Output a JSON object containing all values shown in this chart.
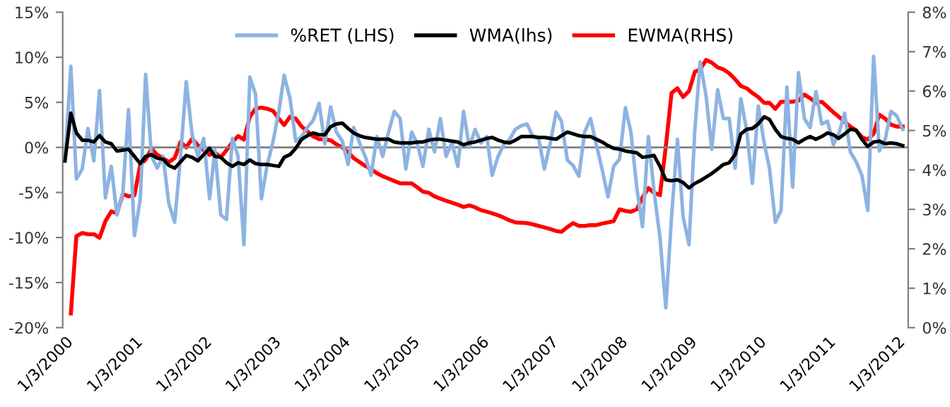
{
  "chart_data": {
    "type": "line",
    "x": [
      "2000-01",
      "2000-02",
      "2000-03",
      "2000-04",
      "2000-05",
      "2000-06",
      "2000-07",
      "2000-08",
      "2000-09",
      "2000-10",
      "2000-11",
      "2000-12",
      "2001-01",
      "2001-02",
      "2001-03",
      "2001-04",
      "2001-05",
      "2001-06",
      "2001-07",
      "2001-08",
      "2001-09",
      "2001-10",
      "2001-11",
      "2001-12",
      "2002-01",
      "2002-02",
      "2002-03",
      "2002-04",
      "2002-05",
      "2002-06",
      "2002-07",
      "2002-08",
      "2002-09",
      "2002-10",
      "2002-11",
      "2002-12",
      "2003-01",
      "2003-02",
      "2003-03",
      "2003-04",
      "2003-05",
      "2003-06",
      "2003-07",
      "2003-08",
      "2003-09",
      "2003-10",
      "2003-11",
      "2003-12",
      "2004-01",
      "2004-02",
      "2004-03",
      "2004-04",
      "2004-05",
      "2004-06",
      "2004-07",
      "2004-08",
      "2004-09",
      "2004-10",
      "2004-11",
      "2004-12",
      "2005-01",
      "2005-02",
      "2005-03",
      "2005-04",
      "2005-05",
      "2005-06",
      "2005-07",
      "2005-08",
      "2005-09",
      "2005-10",
      "2005-11",
      "2005-12",
      "2006-01",
      "2006-02",
      "2006-03",
      "2006-04",
      "2006-05",
      "2006-06",
      "2006-07",
      "2006-08",
      "2006-09",
      "2006-10",
      "2006-11",
      "2006-12",
      "2007-01",
      "2007-02",
      "2007-03",
      "2007-04",
      "2007-05",
      "2007-06",
      "2007-07",
      "2007-08",
      "2007-09",
      "2007-10",
      "2007-11",
      "2007-12",
      "2008-01",
      "2008-02",
      "2008-03",
      "2008-04",
      "2008-05",
      "2008-06",
      "2008-07",
      "2008-08",
      "2008-09",
      "2008-10",
      "2008-11",
      "2008-12",
      "2009-01",
      "2009-02",
      "2009-03",
      "2009-04",
      "2009-05",
      "2009-06",
      "2009-07",
      "2009-08",
      "2009-09",
      "2009-10",
      "2009-11",
      "2009-12",
      "2010-01",
      "2010-02",
      "2010-03",
      "2010-04",
      "2010-05",
      "2010-06",
      "2010-07",
      "2010-08",
      "2010-09",
      "2010-10",
      "2010-11",
      "2010-12",
      "2011-01",
      "2011-02",
      "2011-03",
      "2011-04",
      "2011-05",
      "2011-06",
      "2011-07",
      "2011-08",
      "2011-09",
      "2011-10",
      "2011-11",
      "2011-12",
      "2012-01",
      "2012-02"
    ],
    "xlim": [
      "1999-12-20",
      "2012-03-01"
    ],
    "xticks": [
      {
        "value": "2000-01-03",
        "label": "1/3/2000"
      },
      {
        "value": "2001-01-03",
        "label": "1/3/2001"
      },
      {
        "value": "2002-01-03",
        "label": "1/3/2002"
      },
      {
        "value": "2003-01-03",
        "label": "1/3/2003"
      },
      {
        "value": "2004-01-03",
        "label": "1/3/2004"
      },
      {
        "value": "2005-01-03",
        "label": "1/3/2005"
      },
      {
        "value": "2006-01-03",
        "label": "1/3/2006"
      },
      {
        "value": "2007-01-03",
        "label": "1/3/2007"
      },
      {
        "value": "2008-01-03",
        "label": "1/3/2008"
      },
      {
        "value": "2009-01-03",
        "label": "1/3/2009"
      },
      {
        "value": "2010-01-03",
        "label": "1/3/2010"
      },
      {
        "value": "2011-01-03",
        "label": "1/3/2011"
      },
      {
        "value": "2012-01-03",
        "label": "1/3/2012"
      }
    ],
    "ylim": [
      -20,
      15
    ],
    "yticks": [
      {
        "value": -20,
        "label": "-20%"
      },
      {
        "value": -15,
        "label": "-15%"
      },
      {
        "value": -10,
        "label": "-10%"
      },
      {
        "value": -5,
        "label": "-5%"
      },
      {
        "value": 0,
        "label": "0%"
      },
      {
        "value": 5,
        "label": "5%"
      },
      {
        "value": 10,
        "label": "10%"
      },
      {
        "value": 15,
        "label": "15%"
      }
    ],
    "y2lim": [
      0,
      8
    ],
    "y2ticks": [
      {
        "value": 0,
        "label": "0%"
      },
      {
        "value": 1,
        "label": "1%"
      },
      {
        "value": 2,
        "label": "2%"
      },
      {
        "value": 3,
        "label": "3%"
      },
      {
        "value": 4,
        "label": "4%"
      },
      {
        "value": 5,
        "label": "5%"
      },
      {
        "value": 6,
        "label": "6%"
      },
      {
        "value": 7,
        "label": "7%"
      },
      {
        "value": 8,
        "label": "8%"
      }
    ],
    "ref_lines": [
      {
        "axis": "y",
        "value": 0,
        "color": "#808080"
      }
    ],
    "grid": false,
    "legend": "top",
    "marker": "none",
    "line_style": "solid",
    "series": [
      {
        "name": "%RET (LHS)",
        "color": "#8db3e2",
        "values": [
          -1.5,
          9.0,
          -3.5,
          -2.4,
          2.1,
          -1.5,
          6.3,
          -5.6,
          -2.1,
          -7.5,
          -5.0,
          4.2,
          -9.8,
          -5.7,
          8.1,
          -1.0,
          -2.3,
          -1.0,
          -6.2,
          -8.3,
          -1.0,
          7.3,
          1.4,
          -1.0,
          1.0,
          -5.7,
          -0.3,
          -7.5,
          -8.0,
          1.0,
          -1.0,
          -10.8,
          7.8,
          5.9,
          -5.7,
          -2.0,
          0.6,
          4.0,
          8.0,
          5.4,
          0.7,
          1.2,
          2.2,
          3.0,
          4.9,
          0.4,
          4.5,
          1.7,
          0.7,
          -1.9,
          2.2,
          0.5,
          -1.0,
          -3.1,
          1.2,
          -1.0,
          1.7,
          4.0,
          3.2,
          -2.4,
          1.7,
          0.3,
          -2.1,
          2.0,
          -0.5,
          3.2,
          -1.0,
          0.5,
          -2.1,
          4.0,
          0.0,
          2.0,
          0.5,
          1.2,
          -3.1,
          -1.0,
          0.3,
          0.9,
          2.0,
          2.4,
          2.6,
          1.2,
          1.0,
          -2.4,
          0.5,
          3.9,
          2.9,
          -1.4,
          -2.0,
          -3.2,
          1.7,
          3.2,
          0.3,
          -2.4,
          -5.5,
          -2.1,
          -1.3,
          4.4,
          1.7,
          -4.5,
          -8.8,
          1.2,
          -4.9,
          -10.0,
          -17.8,
          -7.7,
          0.9,
          -7.7,
          -10.8,
          2.0,
          9.5,
          5.7,
          -0.2,
          6.4,
          3.2,
          3.2,
          -2.3,
          5.4,
          1.9,
          -4.0,
          4.6,
          0.5,
          -2.3,
          -8.3,
          -7.0,
          6.7,
          -4.4,
          8.3,
          3.2,
          2.2,
          6.2,
          2.6,
          2.9,
          0.3,
          1.5,
          3.8,
          -0.5,
          -1.6,
          -3.1,
          -7.0,
          10.1,
          -0.4,
          0.9,
          4.0,
          3.5,
          2.0
        ]
      },
      {
        "name": "WMA(lhs)",
        "color": "#000000",
        "values": [
          -1.5,
          3.8,
          1.6,
          0.8,
          0.8,
          0.6,
          1.3,
          0.6,
          0.4,
          -0.4,
          -0.3,
          -0.2,
          -1.0,
          -1.8,
          -1.0,
          -0.8,
          -1.2,
          -1.3,
          -2.0,
          -2.3,
          -1.6,
          -0.9,
          -1.1,
          -1.5,
          -0.8,
          -0.1,
          -1.0,
          -1.1,
          -1.7,
          -2.1,
          -1.7,
          -1.9,
          -1.4,
          -1.8,
          -1.9,
          -1.9,
          -2.0,
          -2.1,
          -1.1,
          -0.8,
          -0.1,
          0.9,
          1.3,
          1.6,
          1.4,
          1.4,
          2.3,
          2.6,
          2.7,
          2.1,
          1.6,
          1.3,
          1.1,
          1.0,
          0.9,
          0.9,
          0.9,
          0.6,
          0.5,
          0.5,
          0.5,
          0.6,
          0.6,
          0.8,
          0.9,
          0.9,
          0.8,
          0.7,
          0.6,
          0.3,
          0.5,
          0.6,
          0.8,
          1.0,
          1.1,
          0.8,
          0.6,
          0.5,
          0.8,
          1.2,
          1.2,
          1.2,
          1.1,
          1.1,
          1.0,
          0.9,
          1.3,
          1.7,
          1.5,
          1.3,
          1.2,
          1.2,
          0.9,
          0.6,
          0.2,
          -0.1,
          -0.2,
          -0.4,
          -0.5,
          -0.6,
          -1.1,
          -1.0,
          -0.9,
          -2.1,
          -3.6,
          -3.7,
          -3.6,
          -3.9,
          -4.5,
          -4.0,
          -3.7,
          -3.3,
          -2.9,
          -2.4,
          -1.9,
          -1.7,
          -0.8,
          1.5,
          2.0,
          2.1,
          2.6,
          3.4,
          3.1,
          2.0,
          1.2,
          1.0,
          0.9,
          0.5,
          0.9,
          1.2,
          0.9,
          1.2,
          1.6,
          1.4,
          1.0,
          1.5,
          2.0,
          1.9,
          0.9,
          0.1,
          0.6,
          0.7,
          0.4,
          0.5,
          0.4,
          0.2
        ]
      },
      {
        "name": "EWMA(RHS)",
        "color": "#ff0000",
        "axis": "y2",
        "values": [
          null,
          0.36,
          2.32,
          2.4,
          2.37,
          2.37,
          2.28,
          2.7,
          2.95,
          2.9,
          3.39,
          3.33,
          3.36,
          4.14,
          4.26,
          4.54,
          4.38,
          4.3,
          4.2,
          4.3,
          4.71,
          4.57,
          4.79,
          4.63,
          4.5,
          4.38,
          4.44,
          4.32,
          4.5,
          4.7,
          4.86,
          4.77,
          5.35,
          5.55,
          5.58,
          5.55,
          5.5,
          5.3,
          5.14,
          5.35,
          5.3,
          5.1,
          4.98,
          4.85,
          4.78,
          4.78,
          4.75,
          4.65,
          4.57,
          4.45,
          4.3,
          4.2,
          4.1,
          4.02,
          3.92,
          3.84,
          3.78,
          3.72,
          3.66,
          3.66,
          3.66,
          3.55,
          3.45,
          3.42,
          3.33,
          3.27,
          3.22,
          3.17,
          3.12,
          3.06,
          3.1,
          3.05,
          2.98,
          2.94,
          2.9,
          2.85,
          2.79,
          2.72,
          2.67,
          2.66,
          2.65,
          2.62,
          2.58,
          2.54,
          2.5,
          2.45,
          2.43,
          2.55,
          2.65,
          2.58,
          2.58,
          2.6,
          2.6,
          2.64,
          2.67,
          2.7,
          3.0,
          2.96,
          2.94,
          3.0,
          3.3,
          3.54,
          3.42,
          3.36,
          4.6,
          5.95,
          6.07,
          5.85,
          6.0,
          6.49,
          6.55,
          6.79,
          6.72,
          6.6,
          6.55,
          6.45,
          6.3,
          6.13,
          6.07,
          5.95,
          5.85,
          5.7,
          5.7,
          5.55,
          5.73,
          5.73,
          5.73,
          5.76,
          5.91,
          5.82,
          5.7,
          5.73,
          5.6,
          5.46,
          5.35,
          5.22,
          5.1,
          5.0,
          4.83,
          4.77,
          4.92,
          5.4,
          5.3,
          5.15,
          5.1,
          5.1
        ]
      }
    ]
  }
}
